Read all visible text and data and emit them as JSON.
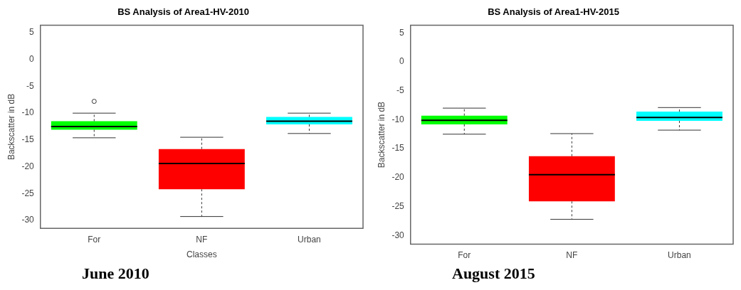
{
  "chart_data": [
    {
      "type": "box",
      "title": "BS Analysis of Area1-HV-2010",
      "xlabel": "Classes",
      "ylabel": "Backscatter in dB",
      "categories": [
        "For",
        "NF",
        "Urban"
      ],
      "colors": [
        "#00ff00",
        "#ff0000",
        "#00ffff"
      ],
      "boxes": [
        {
          "low": -14.6,
          "q1": -13.1,
          "median": -12.5,
          "q3": -11.5,
          "high": -10.0,
          "outliers": [
            -7.8
          ]
        },
        {
          "low": -29.3,
          "q1": -24.2,
          "median": -19.4,
          "q3": -16.7,
          "high": -14.5
        },
        {
          "low": -13.8,
          "q1": -12.1,
          "median": -11.5,
          "q3": -10.7,
          "high": -10.0
        }
      ],
      "ylim": [
        -31.5,
        6.4
      ],
      "yticks": [
        -30,
        -25,
        -20,
        -15,
        -10,
        -5,
        0,
        5
      ],
      "grid": false,
      "legend": false,
      "annotations": [
        "June 2010"
      ]
    },
    {
      "type": "box",
      "title": "BS Analysis of Area1-HV-2015",
      "ylabel": "Backscatter in dB",
      "categories": [
        "For",
        "NF",
        "Urban"
      ],
      "colors": [
        "#00ff00",
        "#ff0000",
        "#00ffff"
      ],
      "boxes": [
        {
          "low": -12.5,
          "q1": -10.8,
          "median": -10.1,
          "q3": -9.3,
          "high": -8.0
        },
        {
          "low": -27.2,
          "q1": -24.1,
          "median": -19.5,
          "q3": -16.3,
          "high": -12.4
        },
        {
          "low": -11.8,
          "q1": -10.2,
          "median": -9.6,
          "q3": -8.6,
          "high": -7.9
        }
      ],
      "ylim": [
        -31.5,
        6.3
      ],
      "yticks": [
        -30,
        -25,
        -20,
        -15,
        -10,
        -5,
        0,
        5
      ],
      "grid": false,
      "legend": false,
      "annotations": [
        "August 2015"
      ]
    }
  ]
}
